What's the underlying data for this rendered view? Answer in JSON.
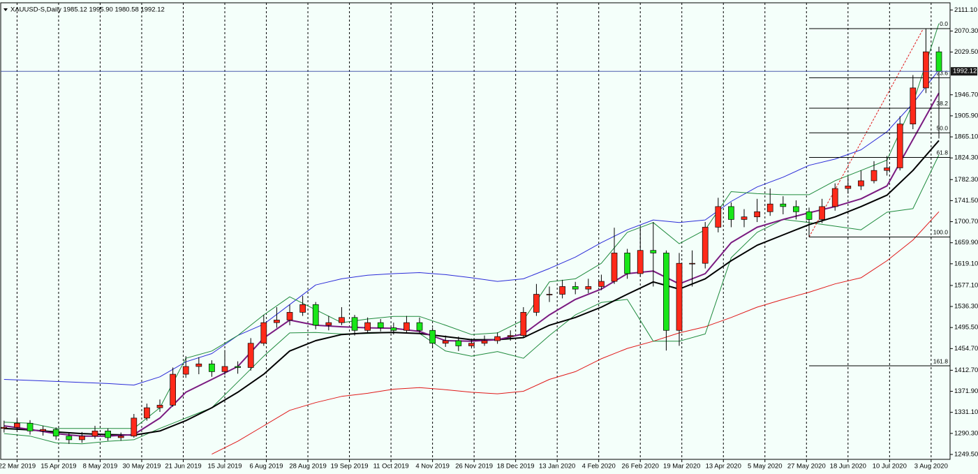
{
  "chart_data": {
    "type": "candlestick",
    "header": "XAUUSD-S,Daily  1985.12 1995.90 1980.58 1992.12",
    "xlim": [
      -1.3,
      364.3
    ],
    "ylim": [
      1240,
      2125
    ],
    "xticks": [
      {
        "value": 5,
        "label": "22 Mar 2019"
      },
      {
        "value": 21,
        "label": "15 Apr 2019"
      },
      {
        "value": 37,
        "label": "8 May 2019"
      },
      {
        "value": 53,
        "label": "30 May 2019"
      },
      {
        "value": 69,
        "label": "21 Jun 2019"
      },
      {
        "value": 85,
        "label": "15 Jul 2019"
      },
      {
        "value": 101,
        "label": "6 Aug 2019"
      },
      {
        "value": 117,
        "label": "28 Aug 2019"
      },
      {
        "value": 133,
        "label": "19 Sep 2019"
      },
      {
        "value": 149,
        "label": "11 Oct 2019"
      },
      {
        "value": 165,
        "label": "4 Nov 2019"
      },
      {
        "value": 181,
        "label": "26 Nov 2019"
      },
      {
        "value": 197,
        "label": "18 Dec 2019"
      },
      {
        "value": 213,
        "label": "13 Jan 2020"
      },
      {
        "value": 229,
        "label": "4 Feb 2020"
      },
      {
        "value": 245,
        "label": "26 Feb 2020"
      },
      {
        "value": 261,
        "label": "19 Mar 2020"
      },
      {
        "value": 277,
        "label": "13 Apr 2020"
      },
      {
        "value": 293,
        "label": "5 May 2020"
      },
      {
        "value": 309,
        "label": "27 May 2020"
      },
      {
        "value": 325,
        "label": "18 Jun 2020"
      },
      {
        "value": 341,
        "label": "10 Jul 2020"
      },
      {
        "value": 357,
        "label": "3 Aug 2020"
      }
    ],
    "yticks": [
      {
        "value": 2111.1,
        "label": "2111.10"
      },
      {
        "value": 2070.3,
        "label": "2070.30"
      },
      {
        "value": 2029.5,
        "label": "2029.50"
      },
      {
        "value": 1946.7,
        "label": "1946.70"
      },
      {
        "value": 1905.9,
        "label": "1905.90"
      },
      {
        "value": 1865.1,
        "label": "1865.10"
      },
      {
        "value": 1824.3,
        "label": "1824.30"
      },
      {
        "value": 1782.3,
        "label": "1782.30"
      },
      {
        "value": 1741.5,
        "label": "1741.50"
      },
      {
        "value": 1700.7,
        "label": "1700.70"
      },
      {
        "value": 1659.9,
        "label": "1659.90"
      },
      {
        "value": 1619.1,
        "label": "1619.10"
      },
      {
        "value": 1577.1,
        "label": "1577.10"
      },
      {
        "value": 1536.3,
        "label": "1536.30"
      },
      {
        "value": 1495.5,
        "label": "1495.50"
      },
      {
        "value": 1454.7,
        "label": "1454.70"
      },
      {
        "value": 1412.7,
        "label": "1412.70"
      },
      {
        "value": 1371.9,
        "label": "1371.90"
      },
      {
        "value": 1331.1,
        "label": "1331.10"
      },
      {
        "value": 1290.3,
        "label": "1290.30"
      },
      {
        "value": 1249.5,
        "label": "1249.50"
      }
    ],
    "grid": true,
    "candles": {
      "up_color": "#ff2a1a",
      "down_color": "#19e619",
      "x": [
        0,
        5,
        10,
        15,
        20,
        25,
        30,
        35,
        40,
        45,
        50,
        55,
        60,
        65,
        70,
        75,
        80,
        85,
        90,
        95,
        100,
        105,
        110,
        115,
        120,
        125,
        130,
        135,
        140,
        145,
        150,
        155,
        160,
        165,
        170,
        175,
        180,
        185,
        190,
        195,
        200,
        205,
        210,
        215,
        220,
        225,
        230,
        235,
        240,
        245,
        250,
        255,
        260,
        265,
        270,
        275,
        280,
        285,
        290,
        295,
        300,
        305,
        310,
        315,
        320,
        325,
        330,
        335,
        340,
        345,
        350,
        355,
        360
      ],
      "open": [
        1300,
        1302,
        1310,
        1295,
        1298,
        1285,
        1278,
        1285,
        1295,
        1282,
        1285,
        1320,
        1340,
        1345,
        1405,
        1420,
        1425,
        1410,
        1420,
        1418,
        1465,
        1505,
        1510,
        1525,
        1540,
        1500,
        1505,
        1515,
        1490,
        1505,
        1495,
        1490,
        1505,
        1490,
        1465,
        1470,
        1460,
        1465,
        1470,
        1478,
        1480,
        1525,
        1560,
        1560,
        1575,
        1570,
        1575,
        1585,
        1640,
        1600,
        1645,
        1640,
        1490,
        1620,
        1620,
        1690,
        1730,
        1705,
        1710,
        1720,
        1735,
        1730,
        1720,
        1705,
        1730,
        1765,
        1770,
        1780,
        1800,
        1805,
        1890,
        1960,
        2030
      ],
      "high": [
        1315,
        1318,
        1316,
        1305,
        1302,
        1292,
        1293,
        1305,
        1300,
        1292,
        1328,
        1348,
        1356,
        1418,
        1440,
        1438,
        1432,
        1452,
        1430,
        1475,
        1520,
        1535,
        1540,
        1557,
        1545,
        1518,
        1535,
        1520,
        1515,
        1512,
        1505,
        1518,
        1515,
        1495,
        1480,
        1478,
        1474,
        1480,
        1486,
        1490,
        1535,
        1580,
        1575,
        1588,
        1584,
        1590,
        1598,
        1689,
        1648,
        1690,
        1700,
        1645,
        1640,
        1645,
        1700,
        1747,
        1738,
        1725,
        1745,
        1765,
        1750,
        1742,
        1728,
        1745,
        1775,
        1788,
        1800,
        1818,
        1828,
        1905,
        1985,
        2075,
        2040
      ],
      "low": [
        1292,
        1296,
        1288,
        1286,
        1278,
        1270,
        1272,
        1280,
        1276,
        1276,
        1282,
        1315,
        1332,
        1342,
        1398,
        1405,
        1400,
        1404,
        1406,
        1412,
        1460,
        1495,
        1500,
        1518,
        1492,
        1490,
        1500,
        1480,
        1484,
        1488,
        1482,
        1485,
        1484,
        1456,
        1458,
        1450,
        1455,
        1460,
        1464,
        1470,
        1476,
        1518,
        1545,
        1552,
        1560,
        1562,
        1568,
        1580,
        1590,
        1595,
        1575,
        1451,
        1460,
        1575,
        1610,
        1680,
        1690,
        1690,
        1700,
        1712,
        1715,
        1705,
        1671,
        1698,
        1722,
        1755,
        1762,
        1775,
        1790,
        1800,
        1880,
        1950,
        1862
      ],
      "close": [
        1302,
        1310,
        1295,
        1298,
        1285,
        1278,
        1285,
        1295,
        1282,
        1285,
        1320,
        1340,
        1345,
        1405,
        1420,
        1425,
        1410,
        1420,
        1418,
        1465,
        1505,
        1510,
        1525,
        1540,
        1500,
        1505,
        1515,
        1490,
        1505,
        1495,
        1490,
        1505,
        1490,
        1465,
        1470,
        1460,
        1465,
        1470,
        1478,
        1480,
        1525,
        1560,
        1560,
        1575,
        1570,
        1575,
        1585,
        1640,
        1600,
        1645,
        1640,
        1490,
        1620,
        1620,
        1690,
        1730,
        1705,
        1710,
        1720,
        1735,
        1730,
        1720,
        1705,
        1730,
        1765,
        1770,
        1780,
        1800,
        1805,
        1890,
        1960,
        2030,
        1992
      ]
    },
    "series": [
      {
        "color": "#2a2ad8",
        "width": 1,
        "x": [
          0,
          10,
          20,
          30,
          40,
          50,
          60,
          70,
          80,
          90,
          100,
          110,
          120,
          130,
          140,
          150,
          160,
          170,
          180,
          190,
          200,
          210,
          220,
          230,
          240,
          250,
          260,
          270,
          280,
          290,
          300,
          310,
          320,
          330,
          340,
          350,
          360
        ],
        "values": [
          1395,
          1393,
          1391,
          1389,
          1387,
          1384,
          1400,
          1429,
          1445,
          1480,
          1502,
          1540,
          1578,
          1590,
          1597,
          1600,
          1602,
          1598,
          1592,
          1585,
          1590,
          1610,
          1632,
          1660,
          1685,
          1704,
          1699,
          1704,
          1740,
          1768,
          1787,
          1810,
          1822,
          1840,
          1875,
          1930,
          1995
        ]
      },
      {
        "color": "#e01818",
        "width": 1,
        "x": [
          0,
          10,
          20,
          30,
          40,
          50,
          60,
          70,
          80,
          90,
          100,
          110,
          120,
          130,
          140,
          150,
          160,
          170,
          180,
          190,
          200,
          210,
          220,
          230,
          240,
          250,
          260,
          270,
          280,
          290,
          300,
          310,
          320,
          330,
          340,
          350,
          360
        ],
        "values": [
          null,
          null,
          null,
          null,
          null,
          null,
          null,
          null,
          1250,
          1275,
          1305,
          1335,
          1350,
          1362,
          1368,
          1376,
          1379,
          1375,
          1370,
          1367,
          1372,
          1395,
          1410,
          1435,
          1455,
          1469,
          1485,
          1497,
          1515,
          1535,
          1550,
          1564,
          1580,
          1592,
          1625,
          1665,
          1720
        ]
      },
      {
        "color": "#1e8a3c",
        "width": 1,
        "x": [
          0,
          10,
          20,
          30,
          40,
          50,
          60,
          70,
          80,
          90,
          100,
          110,
          120,
          130,
          140,
          150,
          160,
          170,
          180,
          190,
          200,
          210,
          220,
          230,
          240,
          250,
          260,
          270,
          280,
          290,
          300,
          310,
          320,
          330,
          340,
          350,
          360
        ],
        "values": [
          1312,
          1310,
          1300,
          1300,
          1300,
          1300,
          1340,
          1436,
          1450,
          1480,
          1520,
          1555,
          1530,
          1505,
          1512,
          1517,
          1517,
          1500,
          1482,
          1485,
          1510,
          1584,
          1590,
          1620,
          1680,
          1699,
          1658,
          1685,
          1759,
          1755,
          1753,
          1753,
          1780,
          1800,
          1820,
          1930,
          2085
        ]
      },
      {
        "color": "#1e8a3c",
        "width": 1,
        "x": [
          0,
          10,
          20,
          30,
          40,
          50,
          60,
          70,
          80,
          90,
          100,
          110,
          120,
          130,
          140,
          150,
          160,
          170,
          180,
          190,
          200,
          210,
          220,
          230,
          240,
          250,
          260,
          270,
          280,
          290,
          300,
          310,
          320,
          330,
          340,
          350,
          360
        ],
        "values": [
          1290,
          1285,
          1272,
          1270,
          1275,
          1278,
          1300,
          1320,
          1340,
          1390,
          1440,
          1485,
          1486,
          1483,
          1484,
          1486,
          1484,
          1450,
          1440,
          1449,
          1436,
          1480,
          1520,
          1544,
          1550,
          1469,
          1469,
          1483,
          1631,
          1680,
          1705,
          1699,
          1692,
          1685,
          1719,
          1726,
          1830
        ]
      },
      {
        "color": "#000000",
        "width": 2,
        "x": [
          0,
          10,
          20,
          30,
          40,
          50,
          60,
          70,
          80,
          90,
          100,
          110,
          120,
          130,
          140,
          150,
          160,
          170,
          180,
          190,
          200,
          210,
          220,
          230,
          240,
          250,
          260,
          270,
          280,
          290,
          300,
          310,
          320,
          330,
          340,
          350,
          360
        ],
        "values": [
          1300,
          1297,
          1293,
          1290,
          1288,
          1287,
          1295,
          1315,
          1340,
          1370,
          1405,
          1450,
          1470,
          1482,
          1485,
          1486,
          1484,
          1478,
          1472,
          1472,
          1476,
          1500,
          1515,
          1535,
          1560,
          1584,
          1570,
          1590,
          1625,
          1655,
          1675,
          1695,
          1710,
          1730,
          1752,
          1800,
          1858
        ]
      },
      {
        "color": "#7a1a80",
        "width": 2,
        "x": [
          0,
          10,
          20,
          30,
          40,
          50,
          60,
          70,
          80,
          90,
          100,
          110,
          120,
          130,
          140,
          150,
          160,
          170,
          180,
          190,
          200,
          210,
          220,
          230,
          240,
          250,
          260,
          270,
          280,
          290,
          300,
          310,
          320,
          330,
          340,
          350,
          360
        ],
        "values": [
          1305,
          1298,
          1290,
          1285,
          1285,
          1288,
          1320,
          1370,
          1395,
          1420,
          1475,
          1510,
          1500,
          1497,
          1495,
          1494,
          1488,
          1470,
          1469,
          1472,
          1483,
          1520,
          1550,
          1570,
          1600,
          1605,
          1580,
          1600,
          1660,
          1690,
          1705,
          1718,
          1730,
          1745,
          1770,
          1860,
          1950
        ]
      }
    ],
    "fibonacci": {
      "color": "#000000",
      "trend_color": "#e01818",
      "x_start": 310,
      "levels": [
        {
          "value": 2075,
          "label": "0.0"
        },
        {
          "value": 1979.7,
          "label": "23.6"
        },
        {
          "value": 1920.7,
          "label": "38.2"
        },
        {
          "value": 1873,
          "label": "50.0"
        },
        {
          "value": 1825.3,
          "label": "61.8"
        },
        {
          "value": 1671,
          "label": "100.0"
        },
        {
          "value": 1421.3,
          "label": "161.8"
        }
      ],
      "trend": {
        "x": [
          310,
          354
        ],
        "values": [
          1671,
          2075
        ]
      }
    },
    "last_price": {
      "value": 1992.12,
      "label": "1992.12",
      "color": "#3040a0"
    }
  }
}
